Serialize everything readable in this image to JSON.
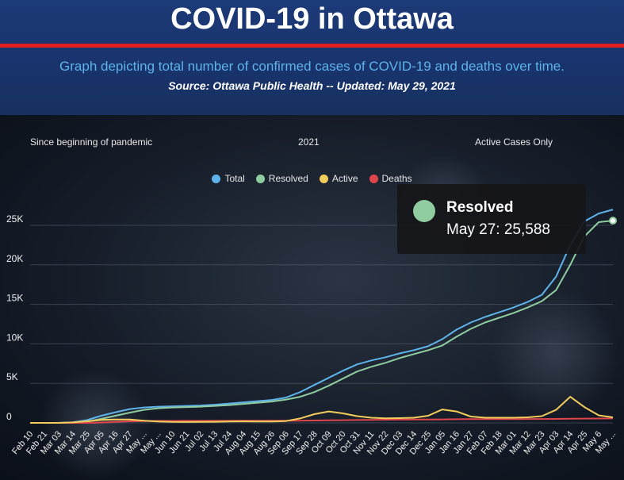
{
  "header": {
    "title": "COVID-19 in Ottawa",
    "subtitle": "Graph depicting total number of confirmed cases of COVID-19 and deaths over time.",
    "source": "Source:  Ottawa Public Health -- Updated:  May 29, 2021"
  },
  "toggles": {
    "since_beginning": "Since beginning of pandemic",
    "year": "2021",
    "active_only": "Active Cases Only"
  },
  "colors": {
    "total": "#5eb3ea",
    "resolved": "#8fcc9f",
    "active": "#f2cd5c",
    "deaths": "#e0454c"
  },
  "tooltip": {
    "series": "Resolved",
    "value_text": "May 27: 25,588"
  },
  "chart_data": {
    "type": "line",
    "ylim": [
      0,
      29000
    ],
    "y_ticks": [
      "0",
      "5K",
      "10K",
      "15K",
      "20K",
      "25K"
    ],
    "y_tick_values": [
      0,
      5000,
      10000,
      15000,
      20000,
      25000
    ],
    "legend_placement": "top-center",
    "x_labels": [
      "Feb 10",
      "Feb 21",
      "Mar 03",
      "Mar 14",
      "Mar 25",
      "Apr 05",
      "Apr 16",
      "Apr 27",
      "May ...",
      "May ...",
      "Jun 10",
      "Jun 21",
      "Jul 02",
      "Jul 13",
      "Jul 24",
      "Aug 04",
      "Aug 15",
      "Aug 26",
      "Sep 06",
      "Sep 17",
      "Sep 28",
      "Oct 09",
      "Oct 20",
      "Oct 31",
      "Nov 11",
      "Nov 22",
      "Dec 03",
      "Dec 14",
      "Dec 25",
      "Jan 05",
      "Jan 16",
      "Jan 27",
      "Feb 07",
      "Feb 18",
      "Mar 01",
      "Mar 12",
      "Mar 23",
      "Apr 03",
      "Apr 14",
      "Apr 25",
      "May 6",
      "May ..."
    ],
    "series": [
      {
        "name": "Total",
        "values": [
          0,
          0,
          5,
          80,
          350,
          900,
          1350,
          1750,
          1950,
          2050,
          2100,
          2150,
          2200,
          2300,
          2450,
          2600,
          2750,
          2900,
          3200,
          3900,
          4800,
          5700,
          6600,
          7400,
          7900,
          8300,
          8800,
          9200,
          9700,
          10600,
          11800,
          12700,
          13400,
          14000,
          14600,
          15300,
          16200,
          18500,
          22500,
          25500,
          26500,
          27000
        ]
      },
      {
        "name": "Resolved",
        "values": [
          0,
          0,
          0,
          20,
          150,
          500,
          900,
          1300,
          1650,
          1850,
          1950,
          2000,
          2050,
          2150,
          2250,
          2400,
          2550,
          2700,
          2950,
          3300,
          3900,
          4700,
          5600,
          6500,
          7100,
          7600,
          8200,
          8700,
          9200,
          9800,
          10900,
          11900,
          12700,
          13300,
          13900,
          14600,
          15400,
          16800,
          20000,
          23600,
          25400,
          25588
        ]
      },
      {
        "name": "Active",
        "values": [
          0,
          0,
          5,
          60,
          200,
          380,
          430,
          420,
          280,
          170,
          120,
          110,
          120,
          140,
          180,
          190,
          180,
          170,
          230,
          560,
          1100,
          1450,
          1200,
          850,
          650,
          580,
          600,
          650,
          900,
          1700,
          1450,
          800,
          650,
          650,
          650,
          700,
          850,
          1650,
          3300,
          2000,
          950,
          700
        ]
      },
      {
        "name": "Deaths",
        "values": [
          0,
          0,
          0,
          0,
          5,
          40,
          120,
          200,
          230,
          250,
          255,
          258,
          260,
          262,
          265,
          268,
          270,
          272,
          275,
          285,
          300,
          320,
          340,
          365,
          385,
          400,
          410,
          420,
          430,
          445,
          460,
          470,
          475,
          480,
          485,
          490,
          495,
          505,
          520,
          540,
          555,
          565
        ]
      }
    ]
  }
}
